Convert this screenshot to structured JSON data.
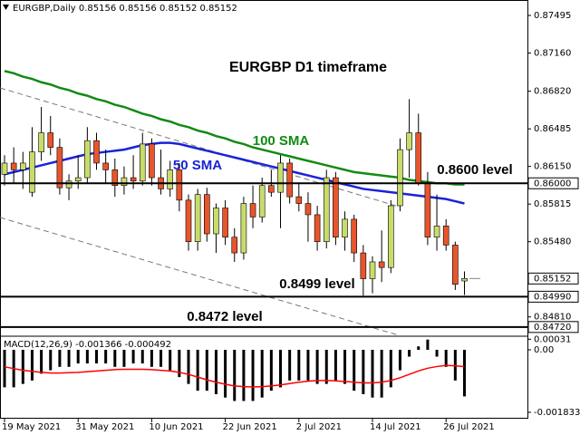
{
  "chart_data": [
    {
      "type": "candlestick",
      "title": "EURGBP,Daily  0.85156 0.85156 0.85152 0.85152",
      "annotation": "EURGBP D1 timeframe",
      "up_color": "#c8dc6c",
      "down_color": "#e8552d",
      "open": [
        0.8608,
        0.8618,
        0.8612,
        0.8592,
        0.8628,
        0.8645,
        0.8632,
        0.8596,
        0.8602,
        0.8605,
        0.8638,
        0.8618,
        0.8612,
        0.8598,
        0.8605,
        0.8602,
        0.8635,
        0.8605,
        0.8595,
        0.8612,
        0.8585,
        0.8548,
        0.859,
        0.8555,
        0.8578,
        0.8552,
        0.8538,
        0.8582,
        0.857,
        0.8598,
        0.8592,
        0.8618,
        0.8588,
        0.8582,
        0.8572,
        0.8548,
        0.8605,
        0.8552,
        0.8568,
        0.8538,
        0.8515,
        0.853,
        0.8525,
        0.858,
        0.863,
        0.8645,
        0.86,
        0.8552,
        0.8562,
        0.8545,
        0.8513
      ],
      "high": [
        0.8625,
        0.8632,
        0.8628,
        0.865,
        0.8668,
        0.866,
        0.864,
        0.8608,
        0.8625,
        0.865,
        0.8645,
        0.863,
        0.8622,
        0.8615,
        0.8625,
        0.8645,
        0.864,
        0.863,
        0.862,
        0.8618,
        0.859,
        0.8595,
        0.8596,
        0.8582,
        0.8585,
        0.856,
        0.8588,
        0.8598,
        0.8605,
        0.8612,
        0.8625,
        0.8622,
        0.86,
        0.8592,
        0.858,
        0.8612,
        0.861,
        0.8575,
        0.8572,
        0.8545,
        0.8535,
        0.8558,
        0.8585,
        0.864,
        0.8675,
        0.8662,
        0.861,
        0.859,
        0.8568,
        0.8548,
        0.85215
      ],
      "low": [
        0.8598,
        0.86,
        0.8595,
        0.8588,
        0.862,
        0.8625,
        0.859,
        0.8585,
        0.8595,
        0.86,
        0.8612,
        0.86,
        0.8588,
        0.859,
        0.8595,
        0.8598,
        0.8598,
        0.859,
        0.8588,
        0.8575,
        0.854,
        0.854,
        0.8548,
        0.8538,
        0.8545,
        0.853,
        0.8532,
        0.856,
        0.8565,
        0.8588,
        0.856,
        0.8582,
        0.8575,
        0.8548,
        0.854,
        0.8542,
        0.8545,
        0.854,
        0.853,
        0.85,
        0.8502,
        0.8512,
        0.852,
        0.8575,
        0.8605,
        0.8598,
        0.8545,
        0.854,
        0.854,
        0.8505,
        0.85005
      ],
      "close": [
        0.8618,
        0.8612,
        0.8618,
        0.8628,
        0.8645,
        0.8632,
        0.8596,
        0.8602,
        0.8605,
        0.8638,
        0.8618,
        0.8612,
        0.8598,
        0.8605,
        0.8602,
        0.8635,
        0.8605,
        0.8595,
        0.8612,
        0.8585,
        0.8548,
        0.859,
        0.8555,
        0.8578,
        0.8552,
        0.8538,
        0.8582,
        0.857,
        0.8598,
        0.8592,
        0.8618,
        0.8588,
        0.8582,
        0.8572,
        0.8548,
        0.8605,
        0.8552,
        0.8568,
        0.8538,
        0.8515,
        0.853,
        0.8525,
        0.858,
        0.863,
        0.8645,
        0.86,
        0.8552,
        0.8562,
        0.8545,
        0.851,
        0.85152
      ],
      "series": [
        {
          "name": "100 SMA",
          "color": "#138a13",
          "values": [
            0.87,
            0.8698,
            0.8695,
            0.8693,
            0.869,
            0.8688,
            0.8685,
            0.8683,
            0.868,
            0.8678,
            0.8675,
            0.8673,
            0.867,
            0.8668,
            0.8665,
            0.8662,
            0.866,
            0.8657,
            0.8655,
            0.8652,
            0.865,
            0.8647,
            0.8645,
            0.8642,
            0.864,
            0.8637,
            0.8635,
            0.8632,
            0.863,
            0.8628,
            0.8626,
            0.8624,
            0.8622,
            0.862,
            0.8618,
            0.8616,
            0.8614,
            0.8612,
            0.861,
            0.8609,
            0.8608,
            0.8607,
            0.8606,
            0.8605,
            0.8603,
            0.8602,
            0.8601,
            0.86,
            0.86,
            0.8599,
            0.8599
          ]
        },
        {
          "name": "50 SMA",
          "color": "#1a22d8",
          "values": [
            0.8608,
            0.861,
            0.8612,
            0.8614,
            0.8616,
            0.8618,
            0.862,
            0.8622,
            0.8624,
            0.8626,
            0.8627,
            0.8628,
            0.8629,
            0.863,
            0.8632,
            0.8634,
            0.8635,
            0.8636,
            0.8636,
            0.8635,
            0.8633,
            0.8631,
            0.8629,
            0.8627,
            0.8625,
            0.8623,
            0.8621,
            0.8619,
            0.8617,
            0.8615,
            0.8613,
            0.8611,
            0.8609,
            0.8607,
            0.8605,
            0.8603,
            0.8601,
            0.8599,
            0.8597,
            0.8595,
            0.8594,
            0.8593,
            0.8592,
            0.8591,
            0.859,
            0.8589,
            0.8588,
            0.8587,
            0.8586,
            0.8584,
            0.8582
          ]
        }
      ],
      "levels": [
        {
          "value": 0.86,
          "label": "0.86000",
          "text": "0.8600 level"
        },
        {
          "value": 0.8499,
          "label": "0.84990",
          "text": "0.8499 level"
        },
        {
          "value": 0.8472,
          "label": "0.84720",
          "text": "0.8472 level"
        }
      ],
      "current_price": 0.85152,
      "ylim": [
        0.84646,
        0.87568
      ],
      "yticks": [
        0.87495,
        {
          "value": 0.8716,
          "label": "0.87160"
        },
        {
          "value": 0.8682,
          "label": "0.86820"
        },
        0.86485,
        {
          "value": 0.8615,
          "label": "0.86150"
        },
        0.85815,
        {
          "value": 0.8548,
          "label": "0.85480"
        },
        {
          "value": 0.8481,
          "label": "0.84810"
        }
      ]
    },
    {
      "type": "macd",
      "title": "MACD(12,26,9) -0.001366 -0.000492",
      "categories": [
        "19 May 2021",
        null,
        null,
        null,
        null,
        null,
        null,
        null,
        "31 May 2021",
        null,
        null,
        null,
        null,
        null,
        null,
        null,
        "10 Jun 2021",
        null,
        null,
        null,
        null,
        null,
        null,
        null,
        "22 Jun 2021",
        null,
        null,
        null,
        null,
        null,
        null,
        null,
        "2 Jul 2021",
        null,
        null,
        null,
        null,
        null,
        null,
        null,
        "14 Jul 2021",
        null,
        null,
        null,
        null,
        null,
        null,
        null,
        "26 Jul 2021",
        null,
        null
      ],
      "color": "#000000",
      "signal_color": "#ff0000",
      "values": [
        -0.0011,
        -0.0011,
        -0.001,
        -0.0009,
        -0.0007,
        -0.0006,
        -0.0005,
        -0.0005,
        -0.0004,
        -0.0004,
        -0.0004,
        -0.0004,
        -0.0005,
        -0.0005,
        -0.0004,
        -0.0004,
        -0.0005,
        -0.0005,
        -0.0006,
        -0.0008,
        -0.001,
        -0.0012,
        -0.0012,
        -0.0013,
        -0.0014,
        -0.0015,
        -0.0015,
        -0.0015,
        -0.0014,
        -0.0012,
        -0.0011,
        -0.0009,
        -0.0009,
        -0.0009,
        -0.001,
        -0.001,
        -0.0009,
        -0.001,
        -0.0012,
        -0.0013,
        -0.0014,
        -0.0014,
        -0.0011,
        -0.0006,
        -0.0002,
        0.0001,
        0.0003,
        -0.0002,
        -0.0005,
        -0.0009,
        -0.001366
      ],
      "signal": [
        -0.0005,
        -0.00055,
        -0.0006,
        -0.00063,
        -0.00066,
        -0.00068,
        -0.00068,
        -0.00067,
        -0.00066,
        -0.00064,
        -0.00062,
        -0.0006,
        -0.00058,
        -0.00057,
        -0.00057,
        -0.00057,
        -0.00058,
        -0.0006,
        -0.00062,
        -0.00066,
        -0.00072,
        -0.0008,
        -0.00088,
        -0.00095,
        -0.00101,
        -0.00106,
        -0.00108,
        -0.00109,
        -0.00108,
        -0.00106,
        -0.00103,
        -0.00099,
        -0.00095,
        -0.00092,
        -0.0009,
        -0.0009,
        -0.00091,
        -0.00093,
        -0.00095,
        -0.00097,
        -0.00097,
        -0.00095,
        -0.0009,
        -0.00082,
        -0.00072,
        -0.00062,
        -0.00054,
        -0.00049,
        -0.00046,
        -0.00047,
        -0.000492
      ],
      "ylim": [
        -0.00202,
        0.000372
      ],
      "yticks": [
        0.00031,
        {
          "value": 0,
          "label": "0.00"
        },
        -0.001833
      ]
    }
  ]
}
